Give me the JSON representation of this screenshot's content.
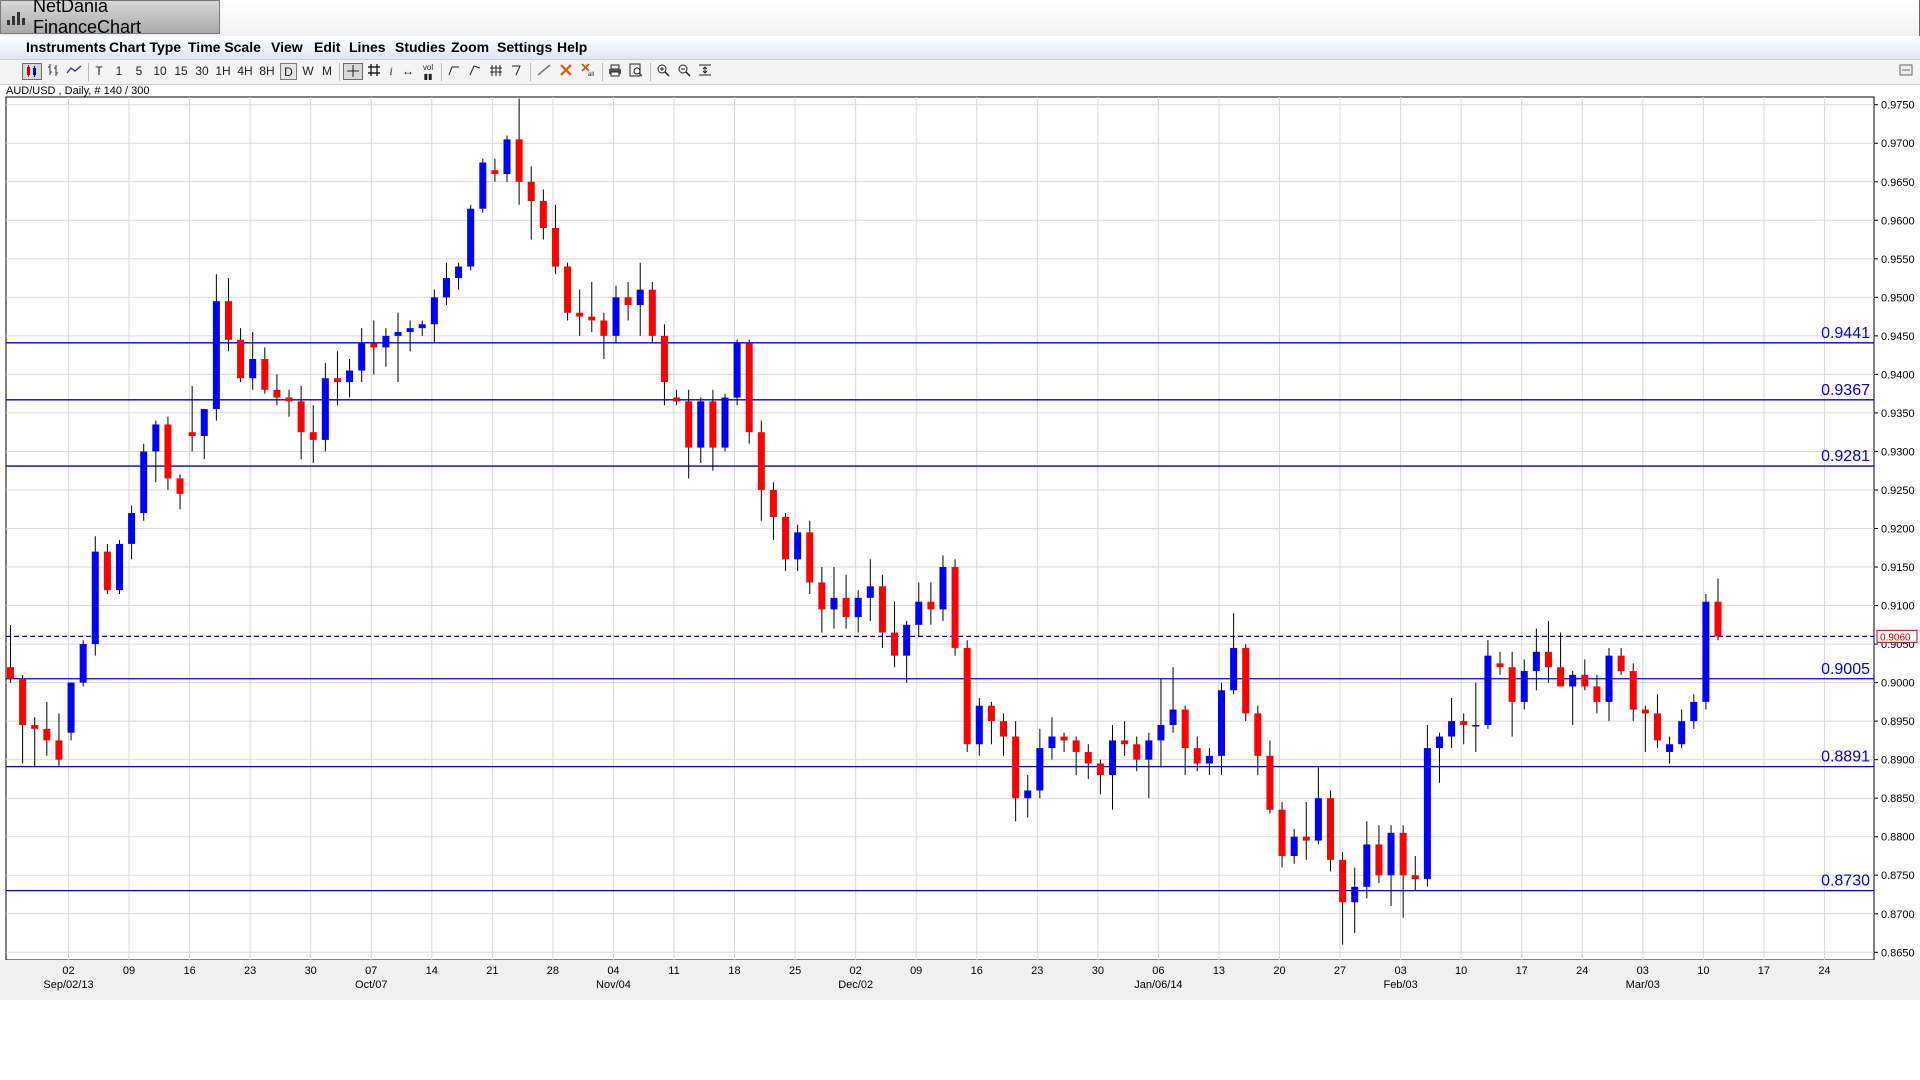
{
  "app": {
    "title": "NetDania FinanceChart"
  },
  "menu": [
    "Instruments",
    "Chart Type",
    "Time Scale",
    "View",
    "Edit",
    "Lines",
    "Studies",
    "Zoom",
    "Settings",
    "Help"
  ],
  "toolbar": {
    "timeframes": [
      "T",
      "1",
      "5",
      "10",
      "15",
      "30",
      "1H",
      "4H",
      "8H",
      "D",
      "W",
      "M"
    ],
    "selected_timeframe": "D",
    "icons": [
      "candlestick-icon",
      "bar-chart-icon",
      "line-chart-icon",
      "crosshair-icon",
      "grid-icon",
      "info-icon",
      "scroll-icon",
      "volume-icon",
      "trendline-icon",
      "fib-icon",
      "pitchfork-icon",
      "arrow-icon",
      "pen-icon",
      "delete-icon",
      "delete-all-icon",
      "print-icon",
      "print-preview-icon",
      "zoom-in-icon",
      "zoom-out-icon",
      "zoom-fit-icon"
    ]
  },
  "chart_info": "AUD/USD , Daily, # 140 / 300",
  "chart_data": {
    "type": "candlestick",
    "symbol": "AUD/USD",
    "timeframe": "Daily",
    "ylim": [
      0.864,
      0.976
    ],
    "y_ticks": [
      "0.9750",
      "0.9700",
      "0.9650",
      "0.9600",
      "0.9550",
      "0.9500",
      "0.9450",
      "0.9400",
      "0.9350",
      "0.9300",
      "0.9250",
      "0.9200",
      "0.9150",
      "0.9100",
      "0.9050",
      "0.9000",
      "0.8950",
      "0.8900",
      "0.8850",
      "0.8800",
      "0.8750",
      "0.8700",
      "0.8650"
    ],
    "x_ticks": [
      {
        "day": "02",
        "month": "Sep/02/13"
      },
      {
        "day": "09",
        "month": ""
      },
      {
        "day": "16",
        "month": ""
      },
      {
        "day": "23",
        "month": ""
      },
      {
        "day": "30",
        "month": ""
      },
      {
        "day": "07",
        "month": "Oct/07"
      },
      {
        "day": "14",
        "month": ""
      },
      {
        "day": "21",
        "month": ""
      },
      {
        "day": "28",
        "month": ""
      },
      {
        "day": "04",
        "month": "Nov/04"
      },
      {
        "day": "11",
        "month": ""
      },
      {
        "day": "18",
        "month": ""
      },
      {
        "day": "25",
        "month": ""
      },
      {
        "day": "02",
        "month": "Dec/02"
      },
      {
        "day": "09",
        "month": ""
      },
      {
        "day": "16",
        "month": ""
      },
      {
        "day": "23",
        "month": ""
      },
      {
        "day": "30",
        "month": ""
      },
      {
        "day": "06",
        "month": "Jan/06/14"
      },
      {
        "day": "13",
        "month": ""
      },
      {
        "day": "20",
        "month": ""
      },
      {
        "day": "27",
        "month": ""
      },
      {
        "day": "03",
        "month": "Feb/03"
      },
      {
        "day": "10",
        "month": ""
      },
      {
        "day": "17",
        "month": ""
      },
      {
        "day": "24",
        "month": ""
      },
      {
        "day": "03",
        "month": "Mar/03"
      },
      {
        "day": "10",
        "month": ""
      },
      {
        "day": "17",
        "month": ""
      },
      {
        "day": "24",
        "month": ""
      }
    ],
    "horizontal_lines": [
      {
        "label": "0.9441",
        "value": 0.9441
      },
      {
        "label": "0.9367",
        "value": 0.9367
      },
      {
        "label": "0.9281",
        "value": 0.9281
      },
      {
        "label": "0.9005",
        "value": 0.9005
      },
      {
        "label": "0.8891",
        "value": 0.8891
      },
      {
        "label": "0.8730",
        "value": 0.873
      }
    ],
    "current_price": {
      "label": "0.9060",
      "value": 0.906
    },
    "colors": {
      "up": "#0000ff",
      "down": "#ff0000",
      "level_line": "#0000cc",
      "grid": "#d9d9d9"
    },
    "candles": [
      [
        0.902,
        0.9075,
        0.9,
        0.9005
      ],
      [
        0.9005,
        0.901,
        0.8895,
        0.8945
      ],
      [
        0.8945,
        0.8955,
        0.889,
        0.894
      ],
      [
        0.894,
        0.8975,
        0.8905,
        0.8925
      ],
      [
        0.8925,
        0.896,
        0.889,
        0.89
      ],
      [
        0.8935,
        0.9,
        0.8925,
        0.9
      ],
      [
        0.9,
        0.9055,
        0.8995,
        0.905
      ],
      [
        0.905,
        0.919,
        0.9035,
        0.917
      ],
      [
        0.917,
        0.918,
        0.9115,
        0.912
      ],
      [
        0.912,
        0.9185,
        0.9115,
        0.918
      ],
      [
        0.918,
        0.923,
        0.916,
        0.922
      ],
      [
        0.922,
        0.931,
        0.921,
        0.93
      ],
      [
        0.93,
        0.934,
        0.926,
        0.9335
      ],
      [
        0.9335,
        0.9345,
        0.925,
        0.9265
      ],
      [
        0.9265,
        0.927,
        0.9225,
        0.9245
      ],
      [
        0.9325,
        0.9385,
        0.93,
        0.932
      ],
      [
        0.932,
        0.9355,
        0.929,
        0.9355
      ],
      [
        0.9355,
        0.953,
        0.934,
        0.9495
      ],
      [
        0.9495,
        0.9525,
        0.943,
        0.9445
      ],
      [
        0.9445,
        0.946,
        0.939,
        0.9395
      ],
      [
        0.9395,
        0.9455,
        0.938,
        0.942
      ],
      [
        0.942,
        0.9435,
        0.9375,
        0.938
      ],
      [
        0.938,
        0.94,
        0.936,
        0.937
      ],
      [
        0.937,
        0.938,
        0.9345,
        0.9365
      ],
      [
        0.9365,
        0.9385,
        0.929,
        0.9325
      ],
      [
        0.9325,
        0.936,
        0.9285,
        0.9315
      ],
      [
        0.9315,
        0.9415,
        0.93,
        0.9395
      ],
      [
        0.9395,
        0.943,
        0.936,
        0.939
      ],
      [
        0.939,
        0.942,
        0.937,
        0.9405
      ],
      [
        0.9405,
        0.946,
        0.939,
        0.944
      ],
      [
        0.944,
        0.947,
        0.94,
        0.9435
      ],
      [
        0.9435,
        0.946,
        0.941,
        0.945
      ],
      [
        0.945,
        0.948,
        0.939,
        0.9455
      ],
      [
        0.9455,
        0.947,
        0.943,
        0.946
      ],
      [
        0.946,
        0.947,
        0.945,
        0.9465
      ],
      [
        0.9465,
        0.951,
        0.944,
        0.95
      ],
      [
        0.95,
        0.9545,
        0.949,
        0.9525
      ],
      [
        0.9525,
        0.9545,
        0.951,
        0.954
      ],
      [
        0.954,
        0.962,
        0.9535,
        0.9615
      ],
      [
        0.9615,
        0.968,
        0.961,
        0.9675
      ],
      [
        0.9665,
        0.968,
        0.965,
        0.966
      ],
      [
        0.966,
        0.971,
        0.965,
        0.9705
      ],
      [
        0.9705,
        0.9758,
        0.962,
        0.965
      ],
      [
        0.965,
        0.967,
        0.9575,
        0.9625
      ],
      [
        0.9625,
        0.964,
        0.9575,
        0.959
      ],
      [
        0.959,
        0.962,
        0.953,
        0.954
      ],
      [
        0.954,
        0.9545,
        0.947,
        0.948
      ],
      [
        0.948,
        0.951,
        0.945,
        0.9475
      ],
      [
        0.9475,
        0.952,
        0.9455,
        0.947
      ],
      [
        0.947,
        0.948,
        0.942,
        0.945
      ],
      [
        0.945,
        0.9515,
        0.944,
        0.95
      ],
      [
        0.95,
        0.952,
        0.947,
        0.949
      ],
      [
        0.949,
        0.9545,
        0.945,
        0.951
      ],
      [
        0.951,
        0.952,
        0.944,
        0.945
      ],
      [
        0.945,
        0.9465,
        0.936,
        0.939
      ],
      [
        0.937,
        0.938,
        0.936,
        0.9365
      ],
      [
        0.9365,
        0.938,
        0.9265,
        0.9305
      ],
      [
        0.9305,
        0.937,
        0.9285,
        0.9365
      ],
      [
        0.9365,
        0.938,
        0.9275,
        0.9305
      ],
      [
        0.9305,
        0.9375,
        0.93,
        0.937
      ],
      [
        0.937,
        0.9445,
        0.936,
        0.944
      ],
      [
        0.944,
        0.9445,
        0.931,
        0.9325
      ],
      [
        0.9325,
        0.934,
        0.921,
        0.925
      ],
      [
        0.925,
        0.926,
        0.9185,
        0.9215
      ],
      [
        0.9215,
        0.922,
        0.9145,
        0.916
      ],
      [
        0.916,
        0.9205,
        0.9145,
        0.9195
      ],
      [
        0.9195,
        0.921,
        0.9115,
        0.913
      ],
      [
        0.913,
        0.915,
        0.9065,
        0.9095
      ],
      [
        0.9095,
        0.915,
        0.907,
        0.911
      ],
      [
        0.911,
        0.914,
        0.907,
        0.9085
      ],
      [
        0.9085,
        0.912,
        0.9065,
        0.911
      ],
      [
        0.911,
        0.916,
        0.908,
        0.9125
      ],
      [
        0.9125,
        0.914,
        0.9045,
        0.9065
      ],
      [
        0.9065,
        0.9105,
        0.902,
        0.9035
      ],
      [
        0.9035,
        0.908,
        0.9,
        0.9075
      ],
      [
        0.9075,
        0.913,
        0.906,
        0.9105
      ],
      [
        0.9105,
        0.913,
        0.9075,
        0.9095
      ],
      [
        0.9095,
        0.9165,
        0.908,
        0.915
      ],
      [
        0.915,
        0.916,
        0.9035,
        0.9045
      ],
      [
        0.9045,
        0.9055,
        0.891,
        0.892
      ],
      [
        0.892,
        0.898,
        0.8905,
        0.897
      ],
      [
        0.897,
        0.8975,
        0.892,
        0.895
      ],
      [
        0.895,
        0.896,
        0.8905,
        0.893
      ],
      [
        0.893,
        0.895,
        0.882,
        0.885
      ],
      [
        0.885,
        0.888,
        0.8825,
        0.886
      ],
      [
        0.886,
        0.894,
        0.885,
        0.8915
      ],
      [
        0.8915,
        0.8955,
        0.89,
        0.893
      ],
      [
        0.893,
        0.8935,
        0.891,
        0.8925
      ],
      [
        0.8925,
        0.893,
        0.888,
        0.891
      ],
      [
        0.891,
        0.892,
        0.8875,
        0.8895
      ],
      [
        0.8895,
        0.89,
        0.8855,
        0.888
      ],
      [
        0.888,
        0.8945,
        0.8835,
        0.8925
      ],
      [
        0.8925,
        0.895,
        0.8905,
        0.892
      ],
      [
        0.892,
        0.893,
        0.8885,
        0.89
      ],
      [
        0.89,
        0.8935,
        0.885,
        0.8925
      ],
      [
        0.8925,
        0.9005,
        0.889,
        0.8945
      ],
      [
        0.8945,
        0.902,
        0.8935,
        0.8965
      ],
      [
        0.8965,
        0.897,
        0.888,
        0.8915
      ],
      [
        0.8915,
        0.893,
        0.8885,
        0.8895
      ],
      [
        0.8895,
        0.8915,
        0.888,
        0.8905
      ],
      [
        0.8905,
        0.9,
        0.888,
        0.899
      ],
      [
        0.899,
        0.909,
        0.8985,
        0.9045
      ],
      [
        0.9045,
        0.905,
        0.895,
        0.896
      ],
      [
        0.896,
        0.897,
        0.888,
        0.8905
      ],
      [
        0.8905,
        0.8925,
        0.883,
        0.8835
      ],
      [
        0.8835,
        0.8845,
        0.876,
        0.8775
      ],
      [
        0.8775,
        0.881,
        0.8765,
        0.88
      ],
      [
        0.88,
        0.8845,
        0.877,
        0.8795
      ],
      [
        0.8795,
        0.889,
        0.879,
        0.885
      ],
      [
        0.885,
        0.886,
        0.8755,
        0.877
      ],
      [
        0.877,
        0.878,
        0.866,
        0.8715
      ],
      [
        0.8715,
        0.876,
        0.8675,
        0.8735
      ],
      [
        0.8735,
        0.882,
        0.872,
        0.879
      ],
      [
        0.879,
        0.8815,
        0.874,
        0.875
      ],
      [
        0.875,
        0.8815,
        0.871,
        0.8805
      ],
      [
        0.8805,
        0.8815,
        0.8695,
        0.875
      ],
      [
        0.875,
        0.8775,
        0.873,
        0.8745
      ],
      [
        0.8745,
        0.8945,
        0.8735,
        0.8915
      ],
      [
        0.8915,
        0.8935,
        0.887,
        0.893
      ],
      [
        0.893,
        0.898,
        0.8915,
        0.895
      ],
      [
        0.895,
        0.896,
        0.892,
        0.8945
      ],
      [
        0.8945,
        0.9,
        0.891,
        0.8945
      ],
      [
        0.8945,
        0.9055,
        0.894,
        0.9035
      ],
      [
        0.9025,
        0.904,
        0.901,
        0.902
      ],
      [
        0.902,
        0.904,
        0.893,
        0.8975
      ],
      [
        0.8975,
        0.903,
        0.8965,
        0.9015
      ],
      [
        0.9015,
        0.907,
        0.899,
        0.904
      ],
      [
        0.904,
        0.908,
        0.9,
        0.902
      ],
      [
        0.902,
        0.9065,
        0.9,
        0.8995
      ],
      [
        0.8995,
        0.9015,
        0.8945,
        0.901
      ],
      [
        0.901,
        0.903,
        0.899,
        0.8995
      ],
      [
        0.8995,
        0.901,
        0.896,
        0.8975
      ],
      [
        0.8975,
        0.9045,
        0.895,
        0.9035
      ],
      [
        0.9035,
        0.9045,
        0.901,
        0.9015
      ],
      [
        0.9015,
        0.9025,
        0.895,
        0.8965
      ],
      [
        0.8965,
        0.897,
        0.891,
        0.896
      ],
      [
        0.896,
        0.8985,
        0.8915,
        0.8925
      ],
      [
        0.891,
        0.893,
        0.8895,
        0.892
      ],
      [
        0.892,
        0.8965,
        0.8915,
        0.895
      ],
      [
        0.895,
        0.8985,
        0.894,
        0.8975
      ],
      [
        0.8975,
        0.9115,
        0.8965,
        0.9105
      ],
      [
        0.9105,
        0.9135,
        0.9055,
        0.906
      ]
    ]
  }
}
